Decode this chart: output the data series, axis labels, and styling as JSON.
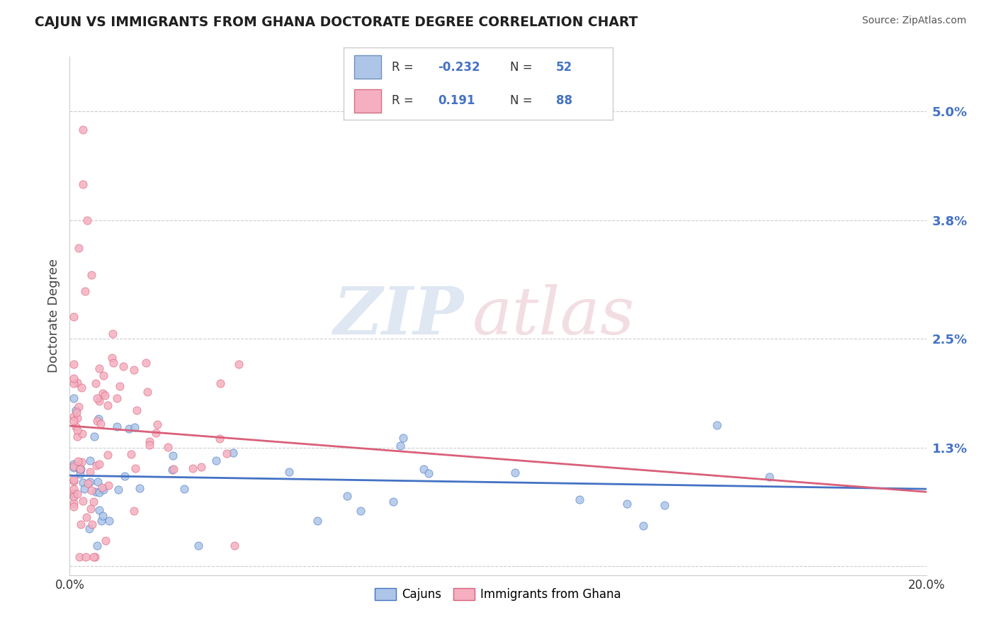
{
  "title": "CAJUN VS IMMIGRANTS FROM GHANA DOCTORATE DEGREE CORRELATION CHART",
  "source": "Source: ZipAtlas.com",
  "ylabel": "Doctorate Degree",
  "y_ticks": [
    0.0,
    0.013,
    0.025,
    0.038,
    0.05
  ],
  "y_tick_labels": [
    "",
    "1.3%",
    "2.5%",
    "3.8%",
    "5.0%"
  ],
  "x_range": [
    0.0,
    0.2
  ],
  "y_range": [
    -0.001,
    0.056
  ],
  "cajun_R": -0.232,
  "cajun_N": 52,
  "ghana_R": 0.191,
  "ghana_N": 88,
  "cajun_color": "#adc6e8",
  "ghana_color": "#f5afc0",
  "cajun_line_color": "#4472c4",
  "ghana_line_color": "#d9607a",
  "ghana_line_dashed_color": "#e08898",
  "title_color": "#1f1f1f",
  "source_color": "#555555",
  "grid_color": "#cccccc",
  "right_tick_color": "#4472c4",
  "legend_border_color": "#cccccc",
  "watermark_zip_color": "#c8d8ea",
  "watermark_atlas_color": "#eac8d0"
}
